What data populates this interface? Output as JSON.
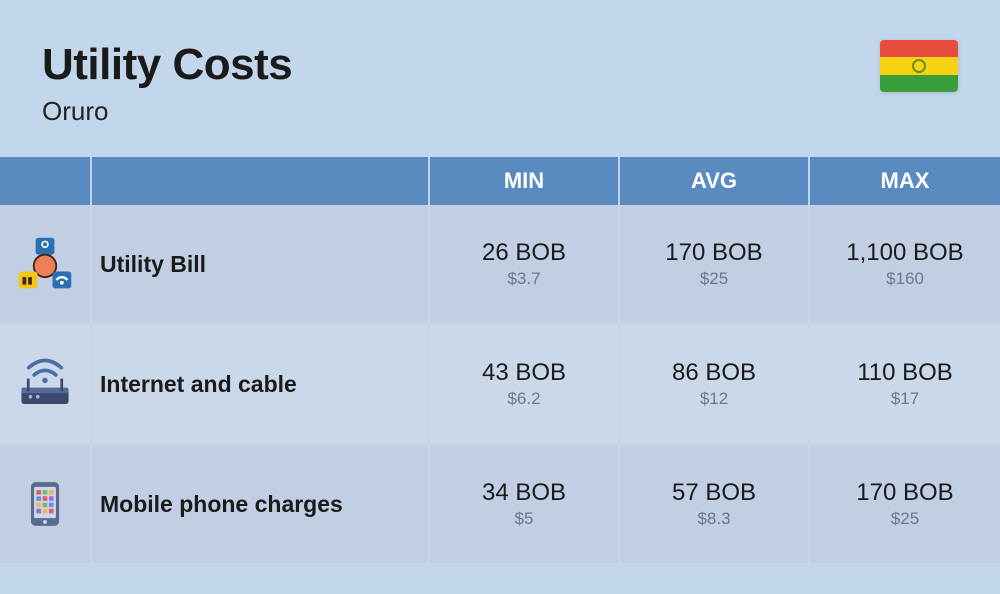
{
  "header": {
    "title": "Utility Costs",
    "subtitle": "Oruro"
  },
  "flag": {
    "stripes": [
      "#e84c3d",
      "#f5d312",
      "#3a9e3a"
    ],
    "emblem_color": "#6b8e23"
  },
  "table": {
    "background_color": "#c2d7eb",
    "header_bg": "#5a8bc0",
    "header_text_color": "#ffffff",
    "row_colors": [
      "#c2cee4",
      "#cbd8ea",
      "#c2cee4"
    ],
    "secondary_text_color": "#6a7a8a",
    "columns": [
      "MIN",
      "AVG",
      "MAX"
    ],
    "rows": [
      {
        "icon": "utility-bill-icon",
        "label": "Utility Bill",
        "values": [
          {
            "primary": "26 BOB",
            "secondary": "$3.7"
          },
          {
            "primary": "170 BOB",
            "secondary": "$25"
          },
          {
            "primary": "1,100 BOB",
            "secondary": "$160"
          }
        ]
      },
      {
        "icon": "router-icon",
        "label": "Internet and cable",
        "values": [
          {
            "primary": "43 BOB",
            "secondary": "$6.2"
          },
          {
            "primary": "86 BOB",
            "secondary": "$12"
          },
          {
            "primary": "110 BOB",
            "secondary": "$17"
          }
        ]
      },
      {
        "icon": "phone-icon",
        "label": "Mobile phone charges",
        "values": [
          {
            "primary": "34 BOB",
            "secondary": "$5"
          },
          {
            "primary": "57 BOB",
            "secondary": "$8.3"
          },
          {
            "primary": "170 BOB",
            "secondary": "$25"
          }
        ]
      }
    ]
  }
}
